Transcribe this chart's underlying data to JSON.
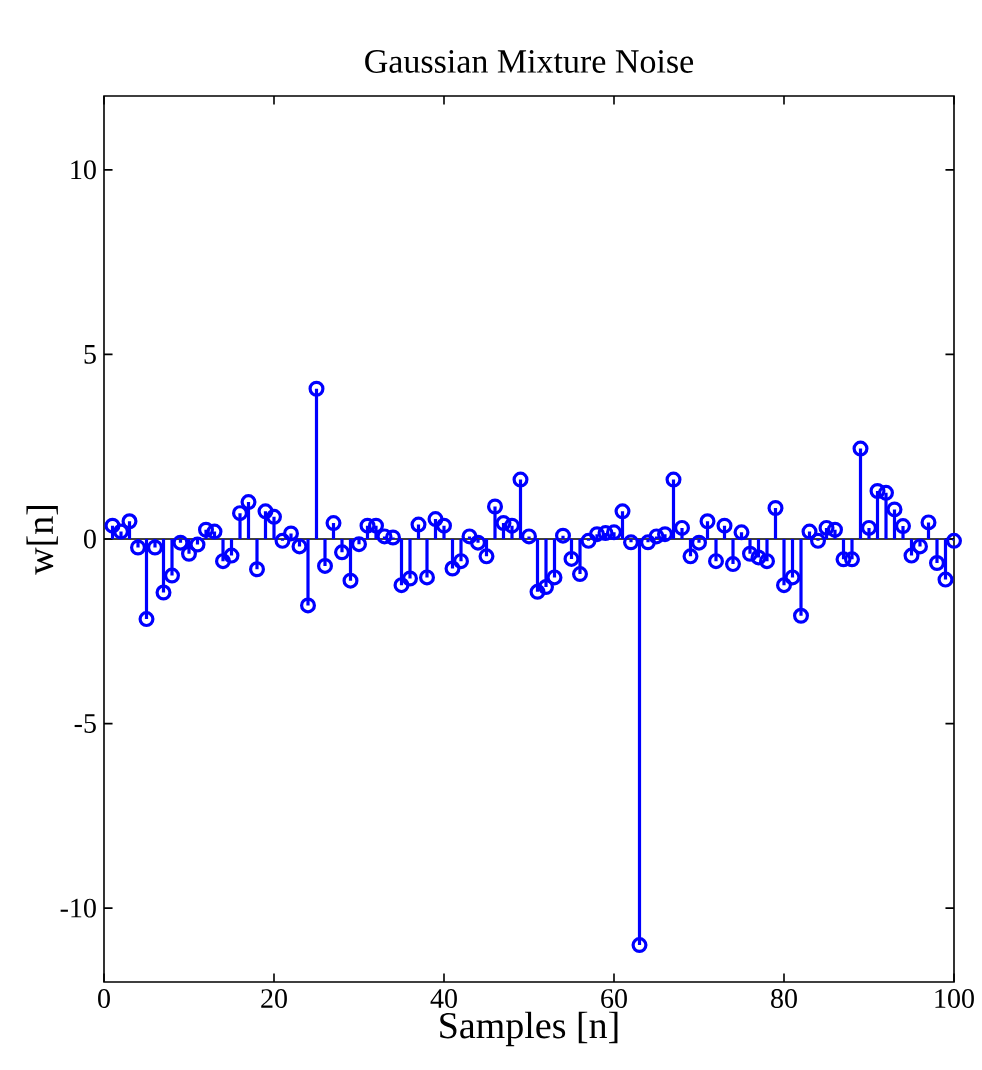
{
  "chart_data": {
    "type": "lollipop",
    "title": "Gaussian Mixture Noise",
    "xlabel": "Samples [n]",
    "ylabel": "w[n]",
    "x": [
      1,
      2,
      3,
      4,
      5,
      6,
      7,
      8,
      9,
      10,
      11,
      12,
      13,
      14,
      15,
      16,
      17,
      18,
      19,
      20,
      21,
      22,
      23,
      24,
      25,
      26,
      27,
      28,
      29,
      30,
      31,
      32,
      33,
      34,
      35,
      36,
      37,
      38,
      39,
      40,
      41,
      42,
      43,
      44,
      45,
      46,
      47,
      48,
      49,
      50,
      51,
      52,
      53,
      54,
      55,
      56,
      57,
      58,
      59,
      60,
      61,
      62,
      63,
      64,
      65,
      66,
      67,
      68,
      69,
      70,
      71,
      72,
      73,
      74,
      75,
      76,
      77,
      78,
      79,
      80,
      81,
      82,
      83,
      84,
      85,
      86,
      87,
      88,
      89,
      90,
      91,
      92,
      93,
      94,
      95,
      96,
      97,
      98,
      99,
      100
    ],
    "series": [
      {
        "color": "#0000ff",
        "values": [
          0.36,
          0.2,
          0.48,
          -0.23,
          -2.17,
          -0.23,
          -1.45,
          -0.99,
          -0.1,
          -0.4,
          -0.15,
          0.25,
          0.2,
          -0.6,
          -0.45,
          0.7,
          1.0,
          -0.82,
          0.75,
          0.6,
          -0.05,
          0.15,
          -0.2,
          -1.8,
          4.07,
          -0.73,
          0.43,
          -0.36,
          -1.13,
          -0.14,
          0.36,
          0.36,
          0.07,
          0.04,
          -1.25,
          -1.07,
          0.39,
          -1.04,
          0.54,
          0.36,
          -0.8,
          -0.6,
          0.07,
          -0.1,
          -0.47,
          0.88,
          0.43,
          0.36,
          1.61,
          0.07,
          -1.43,
          -1.3,
          -1.04,
          0.09,
          -0.54,
          -0.95,
          -0.05,
          0.13,
          0.16,
          0.18,
          0.75,
          -0.09,
          -11,
          -0.09,
          0.07,
          0.13,
          1.61,
          0.3,
          -0.47,
          -0.1,
          0.48,
          -0.6,
          0.36,
          -0.68,
          0.18,
          -0.4,
          -0.5,
          -0.6,
          0.84,
          -1.25,
          -1.04,
          -2.08,
          0.2,
          -0.05,
          0.3,
          0.25,
          -0.55,
          -0.55,
          2.45,
          0.3,
          1.3,
          1.25,
          0.8,
          0.35,
          -0.45,
          -0.2,
          0.45,
          -0.65,
          -1.1,
          -0.05
        ]
      }
    ],
    "marker": "circle",
    "xlim": [
      0,
      100
    ],
    "xticks": [
      0,
      20,
      40,
      60,
      80,
      100
    ],
    "ylim": [
      -12,
      12
    ],
    "yticks": [
      -10,
      -5,
      0,
      5,
      10
    ],
    "ref_lines": [
      {
        "axis": "y",
        "value": 0,
        "color": "#000000"
      }
    ]
  }
}
